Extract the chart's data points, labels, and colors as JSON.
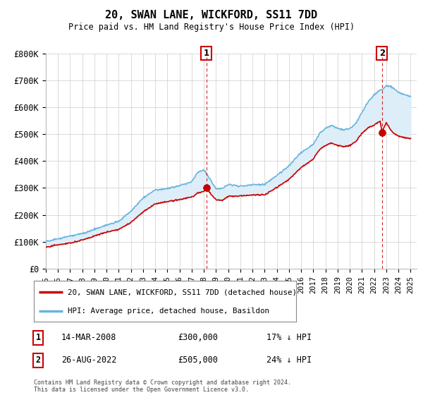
{
  "title": "20, SWAN LANE, WICKFORD, SS11 7DD",
  "subtitle": "Price paid vs. HM Land Registry's House Price Index (HPI)",
  "ylim": [
    0,
    800000
  ],
  "yticks": [
    0,
    100000,
    200000,
    300000,
    400000,
    500000,
    600000,
    700000,
    800000
  ],
  "ytick_labels": [
    "£0",
    "£100K",
    "£200K",
    "£300K",
    "£400K",
    "£500K",
    "£600K",
    "£700K",
    "£800K"
  ],
  "purchase1_year": 2008.2,
  "purchase1_price": 300000,
  "purchase1_label": "14-MAR-2008",
  "purchase1_price_str": "£300,000",
  "purchase1_hpi_pct": "17% ↓ HPI",
  "purchase2_year": 2022.65,
  "purchase2_price": 505000,
  "purchase2_label": "26-AUG-2022",
  "purchase2_price_str": "£505,000",
  "purchase2_hpi_pct": "24% ↓ HPI",
  "legend1": "20, SWAN LANE, WICKFORD, SS11 7DD (detached house)",
  "legend2": "HPI: Average price, detached house, Basildon",
  "footer": "Contains HM Land Registry data © Crown copyright and database right 2024.\nThis data is licensed under the Open Government Licence v3.0.",
  "line_color_price": "#cc0000",
  "line_color_hpi": "#6ab4de",
  "fill_color": "#ddeef8",
  "vline_color": "#cc0000",
  "background_color": "#ffffff",
  "grid_color": "#cccccc"
}
